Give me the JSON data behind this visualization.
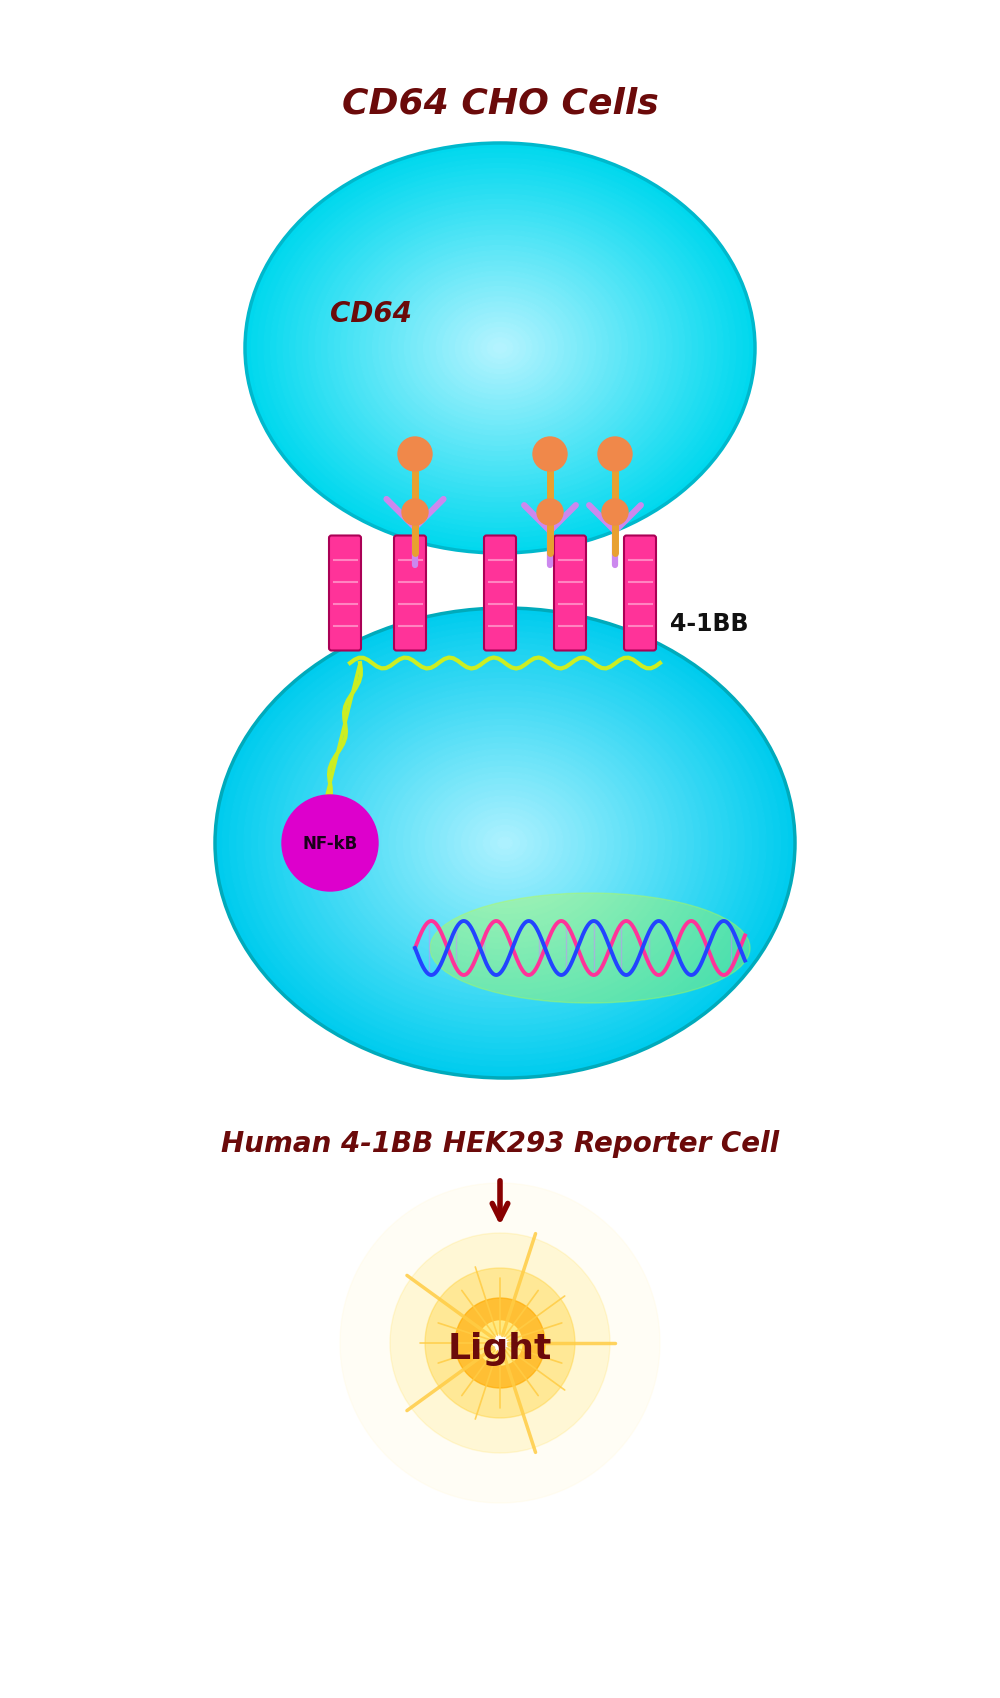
{
  "title_top": "CD64 CHO Cells",
  "title_bottom": "Human 4-1BB HEK293 Reporter Cell",
  "label_cd64": "CD64",
  "label_4bb": "4-1BB",
  "label_nfkb": "NF-kB",
  "label_light": "Light",
  "text_color": "#6b0a0a",
  "bg_color": "#ffffff",
  "cho_cell_color_top": "#b8f4ff",
  "cho_cell_color_bot": "#00d8ee",
  "cho_cell_edge": "#00b8cc",
  "hek_cell_color_top": "#b0f2ff",
  "hek_cell_color_bot": "#00ccee",
  "hek_cell_edge": "#00aabb",
  "receptor_stem_color": "#e8a030",
  "receptor_head_color": "#f0884a",
  "antibody_color": "#cc88ee",
  "tm_color": "#ff3399",
  "tm_stripe_color": "#ff99cc",
  "signal_color": "#ccee22",
  "nfkb_color": "#dd00cc",
  "dna_color1": "#ff3399",
  "dna_color2": "#2244ff",
  "glow_color": "#aaee22",
  "light_color1": "#ffffff",
  "light_color2": "#ffe066",
  "light_color3": "#ffaa00",
  "arrow_color": "#880000"
}
